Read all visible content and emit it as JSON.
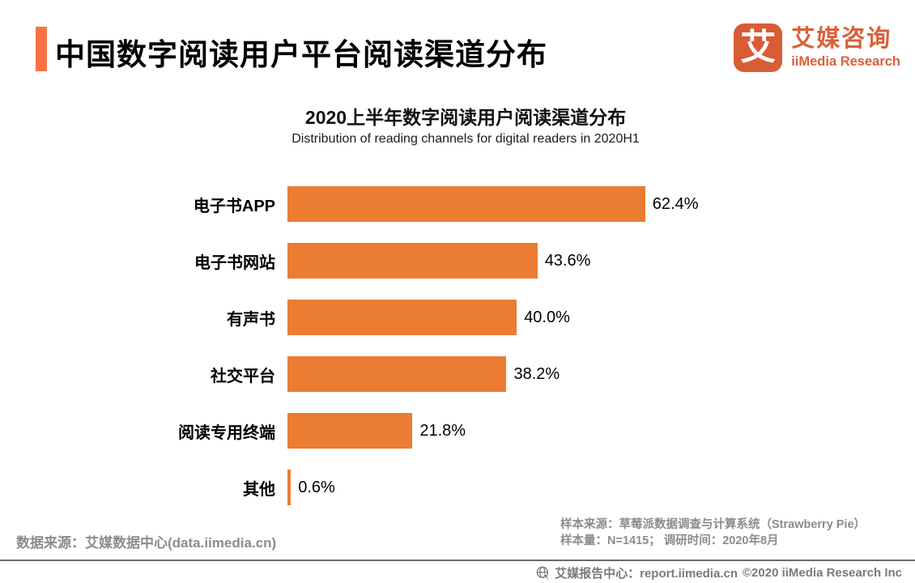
{
  "header": {
    "title": "中国数字阅读用户平台阅读渠道分布"
  },
  "logo": {
    "mark": "艾",
    "name_cn": "艾媒咨询",
    "name_en": "iiMedia Research"
  },
  "chart_data": {
    "type": "bar",
    "orientation": "horizontal",
    "title": "2020上半年数字阅读用户阅读渠道分布",
    "subtitle": "Distribution of reading channels for digital readers in 2020H1",
    "categories": [
      "电子书APP",
      "电子书网站",
      "有声书",
      "社交平台",
      "阅读专用终端",
      "其他"
    ],
    "values": [
      62.4,
      43.6,
      40.0,
      38.2,
      21.8,
      0.6
    ],
    "value_labels": [
      "62.4%",
      "43.6%",
      "40.0%",
      "38.2%",
      "21.8%",
      "0.6%"
    ],
    "xlim": [
      0,
      70
    ],
    "grid": false,
    "legend": "none",
    "bar_color": "#EB7D33"
  },
  "sources": {
    "data_source": "数据来源：艾媒数据中心(data.iimedia.cn)",
    "sample_source": "样本来源：草莓派数据调查与计算系统（Strawberry Pie）",
    "sample_info": "样本量：N=1415； 调研时间：2020年8月"
  },
  "footer": {
    "report_center": "艾媒报告中心：report.iimedia.cn",
    "copyright": "©2020   iiMedia Research Inc"
  },
  "colors": {
    "accent_bar": "#FB7143",
    "bar": "#EB7D33",
    "logo": "#D85C35",
    "logo_text": "#DB5F38",
    "gray_text": "#8C8C8C"
  }
}
